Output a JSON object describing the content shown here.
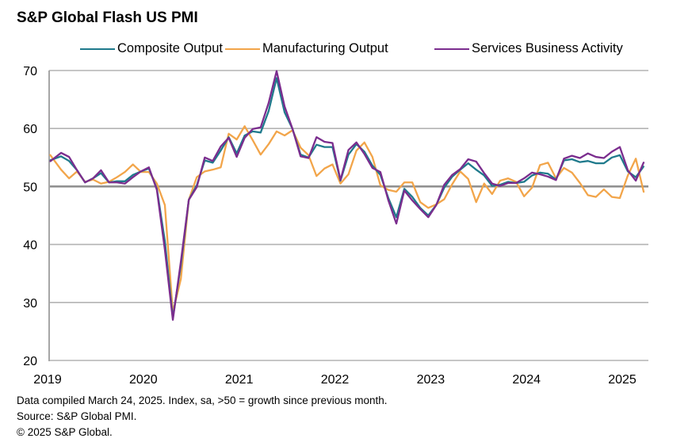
{
  "chart_data": {
    "type": "line",
    "title": "S&P Global Flash US PMI",
    "xlabel": "",
    "ylabel": "",
    "x_start": "2019-01",
    "x_end": "2025-03",
    "x_frequency": "monthly",
    "x_tick_labels": [
      "2019",
      "2020",
      "2021",
      "2022",
      "2023",
      "2024",
      "2025"
    ],
    "y_tick_labels": [
      "20",
      "30",
      "40",
      "50",
      "60",
      "70"
    ],
    "ylim": [
      20,
      70
    ],
    "grid": "horizontal",
    "highlight_line": 50,
    "legend_position": "top",
    "series": [
      {
        "name": "Composite Output",
        "color": "#1f7a8c",
        "values": [
          54.5,
          55.2,
          54.4,
          52.8,
          50.7,
          51.4,
          52.3,
          50.7,
          50.9,
          50.9,
          52.0,
          52.6,
          53.1,
          49.6,
          40.6,
          27.3,
          36.4,
          47.7,
          50.2,
          54.5,
          54.1,
          56.2,
          58.5,
          55.7,
          58.8,
          59.5,
          59.3,
          63.0,
          68.7,
          62.8,
          59.9,
          55.5,
          55.0,
          57.2,
          56.8,
          56.8,
          51.0,
          55.5,
          57.3,
          56.0,
          53.6,
          52.0,
          48.0,
          44.7,
          49.6,
          48.2,
          46.3,
          45.0,
          46.8,
          49.8,
          51.7,
          52.9,
          54.0,
          52.9,
          51.9,
          50.1,
          50.3,
          50.8,
          50.6,
          50.8,
          51.9,
          52.4,
          52.2,
          51.2,
          54.5,
          54.7,
          54.2,
          54.4,
          54.0,
          54.0,
          55.0,
          55.4,
          52.6,
          51.6,
          53.5
        ]
      },
      {
        "name": "Manufacturing Output",
        "color": "#f2a54a",
        "values": [
          55.5,
          52.9,
          51.4,
          52.6,
          50.8,
          51.2,
          50.5,
          50.8,
          51.6,
          52.5,
          53.8,
          52.5,
          52.5,
          50.5,
          46.8,
          28.3,
          34.0,
          47.7,
          51.6,
          52.6,
          52.9,
          53.3,
          59.1,
          58.1,
          60.4,
          58.0,
          55.5,
          57.3,
          59.5,
          58.8,
          59.7,
          56.7,
          55.4,
          51.8,
          53.1,
          53.8,
          50.5,
          52.1,
          56.2,
          57.6,
          55.1,
          50.2,
          49.4,
          49.1,
          50.7,
          50.7,
          47.3,
          46.3,
          46.9,
          47.8,
          50.4,
          52.6,
          51.3,
          47.3,
          50.5,
          48.7,
          51.0,
          51.4,
          50.8,
          48.3,
          49.8,
          53.7,
          54.1,
          51.4,
          53.2,
          52.4,
          50.6,
          48.5,
          48.2,
          49.5,
          48.2,
          48.0,
          51.9,
          54.8,
          49.0
        ]
      },
      {
        "name": "Services Business Activity",
        "color": "#7b2d8e",
        "values": [
          54.3,
          55.8,
          55.1,
          52.8,
          50.7,
          51.4,
          52.8,
          50.7,
          50.7,
          50.5,
          51.6,
          52.6,
          53.3,
          49.4,
          39.1,
          27.0,
          37.0,
          47.7,
          49.9,
          55.0,
          54.4,
          56.9,
          58.4,
          55.1,
          58.4,
          59.9,
          60.2,
          64.4,
          69.9,
          63.8,
          59.9,
          55.2,
          54.9,
          58.5,
          57.7,
          57.5,
          51.1,
          56.3,
          57.6,
          55.6,
          53.2,
          52.5,
          47.6,
          43.6,
          49.3,
          47.6,
          46.1,
          44.7,
          46.8,
          50.3,
          52.0,
          53.0,
          54.7,
          54.3,
          52.3,
          50.5,
          50.1,
          50.6,
          50.6,
          51.4,
          52.4,
          52.1,
          51.7,
          51.1,
          54.8,
          55.3,
          54.9,
          55.7,
          55.1,
          54.9,
          56.0,
          56.8,
          52.8,
          51.0,
          54.2
        ]
      }
    ]
  },
  "footer": {
    "note": "Data compiled March 24, 2025. Index,  sa, >50 = growth since previous month.",
    "source": "Source: S&P Global PMI.",
    "copyright": "© 2025 S&P Global."
  }
}
